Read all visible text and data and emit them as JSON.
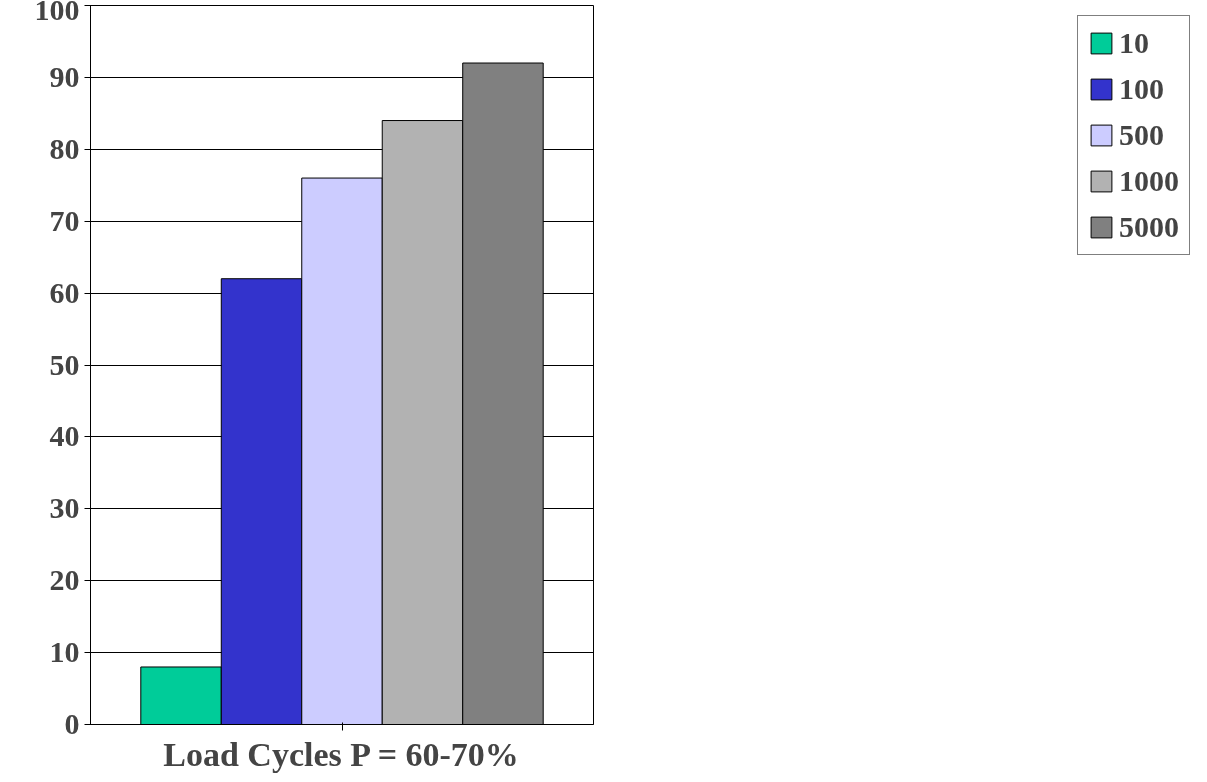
{
  "chart_data": {
    "type": "bar",
    "xlabel": "Load Cycles P = 60-70%",
    "categories": [
      null
    ],
    "series": [
      {
        "name": "10",
        "color": "#00cc99",
        "values": [
          8
        ]
      },
      {
        "name": "100",
        "color": "#3333cc",
        "values": [
          62
        ]
      },
      {
        "name": "500",
        "color": "#ccccff",
        "values": [
          76
        ]
      },
      {
        "name": "1000",
        "color": "#b2b2b2",
        "values": [
          84
        ]
      },
      {
        "name": "5000",
        "color": "#808080",
        "values": [
          92
        ]
      }
    ],
    "ylim": [
      0,
      100
    ],
    "yticks": [
      0,
      10,
      20,
      30,
      40,
      50,
      60,
      70,
      80,
      90,
      100
    ],
    "grid": "y",
    "legend": "right"
  }
}
